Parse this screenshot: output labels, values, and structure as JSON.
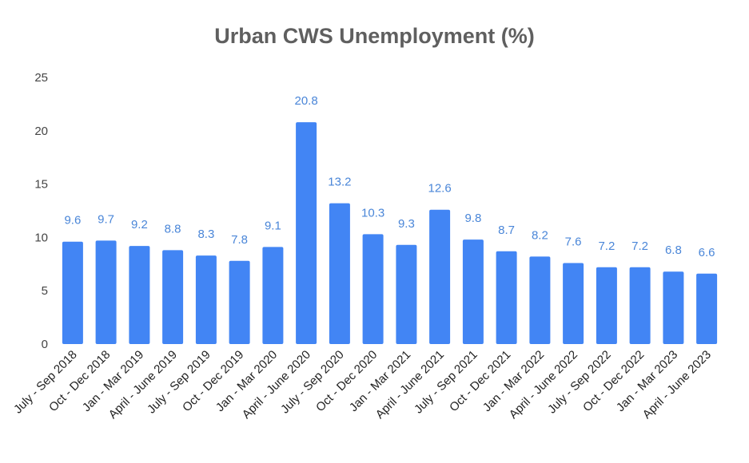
{
  "chart_data": {
    "type": "bar",
    "title": "Urban CWS Unemployment (%)",
    "xlabel": "",
    "ylabel": "",
    "ylim": [
      0,
      25
    ],
    "yticks": [
      0,
      5,
      10,
      15,
      20,
      25
    ],
    "grid": false,
    "legend": "none",
    "bar_color": "#4285f4",
    "label_color": "#4a86d8",
    "categories": [
      "July - Sep 2018",
      "Oct - Dec 2018",
      "Jan - Mar 2019",
      "April - June 2019",
      "July - Sep 2019",
      "Oct - Dec 2019",
      "Jan - Mar 2020",
      "April - June 2020",
      "July - Sep 2020",
      "Oct - Dec 2020",
      "Jan - Mar 2021",
      "April - June 2021",
      "July - Sep 2021",
      "Oct - Dec 2021",
      "Jan - Mar 2022",
      "April - June 2022",
      "July - Sep 2022",
      "Oct - Dec 2022",
      "Jan - Mar 2023",
      "April - June 2023"
    ],
    "values": [
      9.6,
      9.7,
      9.2,
      8.8,
      8.3,
      7.8,
      9.1,
      20.8,
      13.2,
      10.3,
      9.3,
      12.6,
      9.8,
      8.7,
      8.2,
      7.6,
      7.2,
      7.2,
      6.8,
      6.6
    ],
    "data_labels": [
      "9.6",
      "9.7",
      "9.2",
      "8.8",
      "8.3",
      "7.8",
      "9.1",
      "20.8",
      "13.2",
      "10.3",
      "9.3",
      "12.6",
      "9.8",
      "8.7",
      "8.2",
      "7.6",
      "7.2",
      "7.2",
      "6.8",
      "6.6"
    ]
  }
}
